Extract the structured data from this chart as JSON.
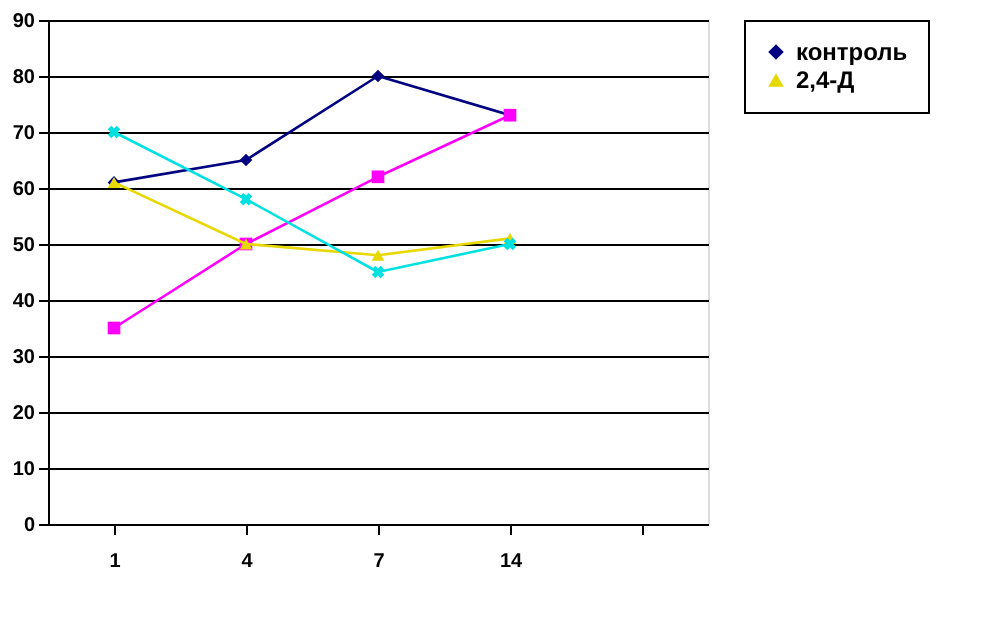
{
  "chart_data": {
    "type": "line",
    "categories": [
      "1",
      "4",
      "7",
      "14",
      null
    ],
    "series": [
      {
        "name": "контроль",
        "color": "#000080",
        "marker": "diamond",
        "values": [
          61,
          65,
          80,
          73,
          null
        ]
      },
      {
        "color": "#ff00ff",
        "marker": "square",
        "values": [
          35,
          50,
          62,
          73,
          null
        ]
      },
      {
        "name": "2,4-Д",
        "color": "#e6d800",
        "marker": "triangle",
        "values": [
          61,
          50,
          48,
          51,
          null
        ]
      },
      {
        "color": "#00e0e0",
        "marker": "cross",
        "values": [
          70,
          58,
          45,
          50,
          null
        ]
      }
    ],
    "ylim": [
      0,
      90
    ],
    "yticks": [
      0,
      10,
      20,
      30,
      40,
      50,
      60,
      70,
      80,
      90
    ],
    "grid": "y",
    "legend": "right"
  }
}
